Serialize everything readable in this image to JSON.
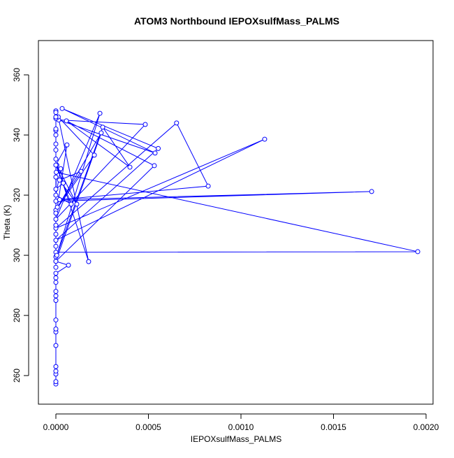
{
  "chart_data": {
    "type": "scatter-line",
    "title": "ATOM3 Northbound IEPOXsulfMass_PALMS",
    "x_label": "IEPOXsulfMass_PALMS",
    "y_label": "Theta (K)",
    "color": "#0000ff",
    "xlim": [
      -9.43e-05,
      0.0020377
    ],
    "ylim": [
      250.5,
      371.4
    ],
    "xticks": [
      {
        "value": 0,
        "label": "0.0000"
      },
      {
        "value": 0.0005,
        "label": "0.0005"
      },
      {
        "value": 0.001,
        "label": "0.0010"
      },
      {
        "value": 0.0015,
        "label": "0.0015"
      },
      {
        "value": 0.002,
        "label": "0.0020"
      }
    ],
    "yticks": [
      260,
      280,
      300,
      320,
      340,
      360
    ],
    "x": [
      0,
      0,
      0,
      0,
      0,
      0,
      0,
      0,
      0,
      0,
      0,
      0,
      0,
      0,
      0,
      6.8e-05,
      0,
      0,
      0,
      0.001955,
      2e-06,
      0,
      0.001706,
      2e-05,
      0.000823,
      0.000652,
      0,
      0.001128,
      0,
      0.000553,
      3.4e-05,
      0.000536,
      1.5e-05,
      0.000483,
      0,
      0.000238,
      5e-06,
      0.000253,
      0.0004,
      5.7e-05,
      0.000532,
      0,
      0.000245,
      0,
      0.000208,
      1.3e-05,
      0.000177,
      5e-06,
      0.000113,
      2e-05,
      0.000136,
      8e-06,
      6e-05,
      0,
      8.3e-05,
      0,
      2.6e-05,
      4e-05,
      0,
      0,
      0,
      0,
      0,
      0,
      0,
      0,
      0,
      0,
      0,
      0,
      0,
      0,
      0,
      0,
      0
    ],
    "values": [
      257.2,
      258,
      260.5,
      261.5,
      263,
      270,
      274.5,
      275.5,
      278.5,
      285,
      286.5,
      288,
      291,
      292.5,
      294,
      296.7,
      298,
      299.5,
      301,
      301.2,
      327.6,
      318,
      321.2,
      318.5,
      323,
      344,
      309,
      338.6,
      305,
      335.5,
      348.8,
      334,
      345,
      343.5,
      312,
      347.2,
      300,
      342.6,
      329.3,
      344.7,
      329.8,
      298,
      340.7,
      315,
      333.3,
      346,
      297.9,
      330,
      317,
      325,
      327.9,
      316,
      336.7,
      330,
      317,
      320,
      328.8,
      324,
      322,
      326,
      332,
      335,
      337,
      340,
      341.5,
      342,
      345.5,
      346,
      348,
      347.5,
      314,
      310,
      307,
      303,
      296
    ]
  }
}
